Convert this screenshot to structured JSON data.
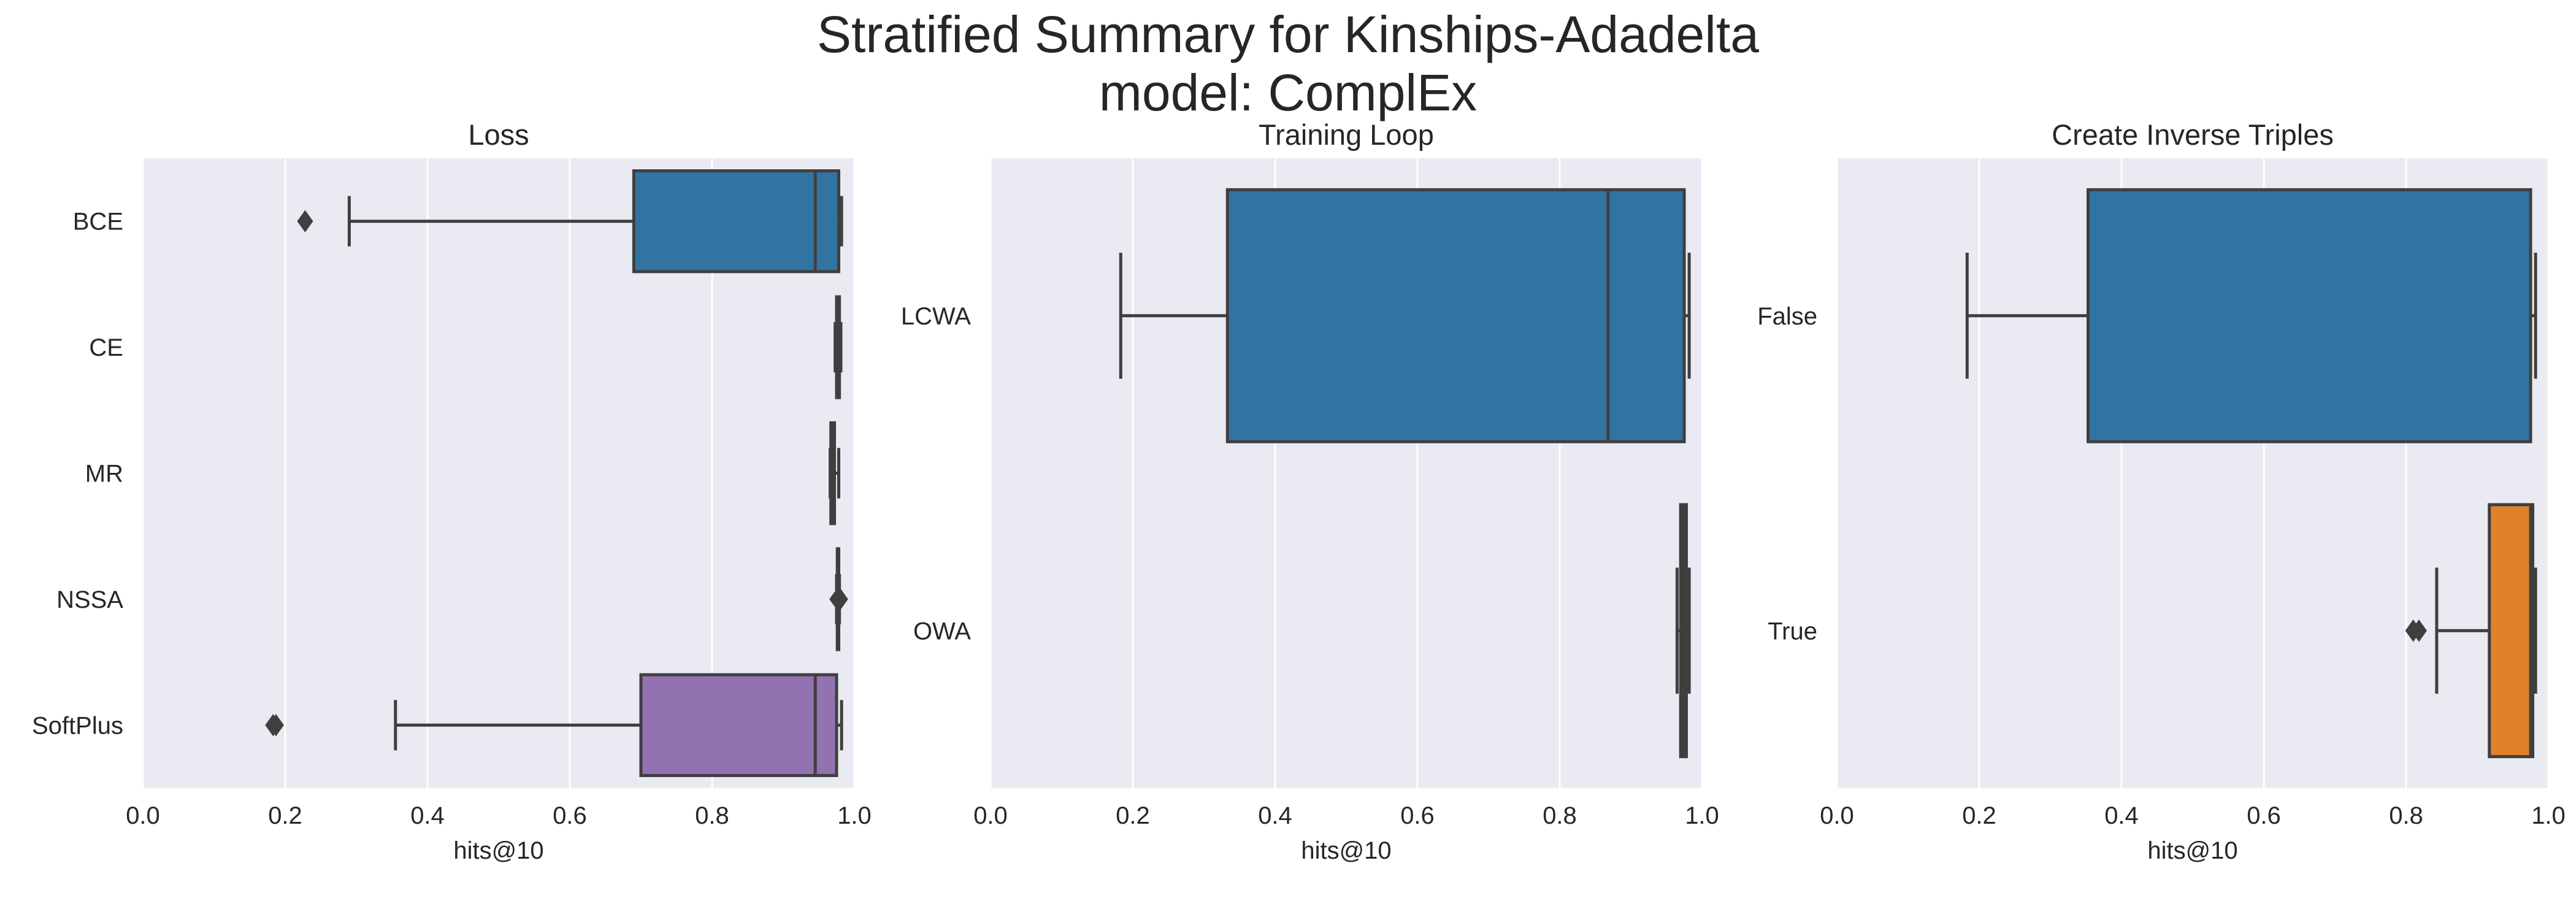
{
  "title_line1": "Stratified Summary for Kinships-Adadelta",
  "title_line2": "model: ComplEx",
  "colors": {
    "axes_bg": "#eaeaf2",
    "grid": "#ffffff",
    "line": "#3f3f3f",
    "blue": "#3274a1",
    "orange": "#e1812c",
    "purple": "#9372b2"
  },
  "chart_data": [
    {
      "type": "box",
      "title": "Loss",
      "xlabel": "hits@10",
      "xlim": [
        0.0,
        1.0
      ],
      "xticks": [
        "0.0",
        "0.2",
        "0.4",
        "0.6",
        "0.8",
        "1.0"
      ],
      "categories": [
        "BCE",
        "CE",
        "MR",
        "NSSA",
        "SoftPlus"
      ],
      "boxes": [
        {
          "category": "BCE",
          "whisker_low": 0.29,
          "q1": 0.69,
          "median": 0.945,
          "q3": 0.978,
          "whisker_high": 0.982,
          "outliers": [
            0.228
          ],
          "color": "#3274a1"
        },
        {
          "category": "CE",
          "whisker_low": 0.973,
          "q1": 0.975,
          "median": 0.977,
          "q3": 0.979,
          "whisker_high": 0.981,
          "outliers": [],
          "color": "#e1812c"
        },
        {
          "category": "MR",
          "whisker_low": 0.966,
          "q1": 0.967,
          "median": 0.969,
          "q3": 0.972,
          "whisker_high": 0.978,
          "outliers": [],
          "color": "#3a923a"
        },
        {
          "category": "NSSA",
          "whisker_low": 0.975,
          "q1": 0.976,
          "median": 0.977,
          "q3": 0.978,
          "whisker_high": 0.979,
          "outliers": [
            0.976,
            0.978,
            0.98
          ],
          "color": "#c03d3e"
        },
        {
          "category": "SoftPlus",
          "whisker_low": 0.355,
          "q1": 0.7,
          "median": 0.945,
          "q3": 0.975,
          "whisker_high": 0.982,
          "outliers": [
            0.183,
            0.187
          ],
          "color": "#9372b2"
        }
      ]
    },
    {
      "type": "box",
      "title": "Training Loop",
      "xlabel": "hits@10",
      "xlim": [
        0.0,
        1.0
      ],
      "xticks": [
        "0.0",
        "0.2",
        "0.4",
        "0.6",
        "0.8",
        "1.0"
      ],
      "categories": [
        "LCWA",
        "OWA"
      ],
      "boxes": [
        {
          "category": "LCWA",
          "whisker_low": 0.183,
          "q1": 0.333,
          "median": 0.868,
          "q3": 0.975,
          "whisker_high": 0.982,
          "outliers": [],
          "color": "#3274a1"
        },
        {
          "category": "OWA",
          "whisker_low": 0.965,
          "q1": 0.97,
          "median": 0.974,
          "q3": 0.978,
          "whisker_high": 0.982,
          "outliers": [],
          "color": "#e1812c"
        }
      ]
    },
    {
      "type": "box",
      "title": "Create Inverse Triples",
      "xlabel": "hits@10",
      "xlim": [
        0.0,
        1.0
      ],
      "xticks": [
        "0.0",
        "0.2",
        "0.4",
        "0.6",
        "0.8",
        "1.0"
      ],
      "categories": [
        "False",
        "True"
      ],
      "boxes": [
        {
          "category": "False",
          "whisker_low": 0.183,
          "q1": 0.353,
          "median": 0.975,
          "q3": 0.975,
          "whisker_high": 0.982,
          "outliers": [],
          "color": "#3274a1"
        },
        {
          "category": "True",
          "whisker_low": 0.843,
          "q1": 0.917,
          "median": 0.975,
          "q3": 0.978,
          "whisker_high": 0.982,
          "outliers": [
            0.81,
            0.818
          ],
          "color": "#e1812c"
        }
      ]
    }
  ]
}
